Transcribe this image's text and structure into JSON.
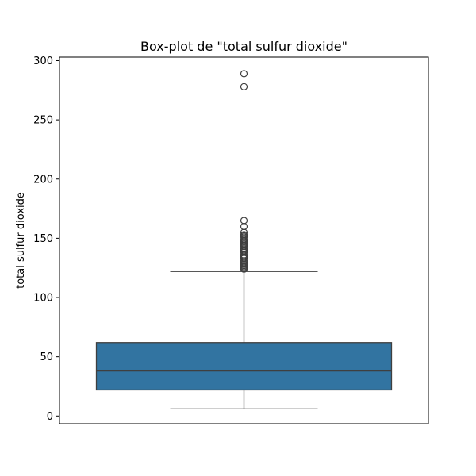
{
  "chart_data": {
    "type": "box",
    "title": "Box-plot de \"total sulfur dioxide\"",
    "xlabel": "",
    "ylabel": "total sulfur dioxide",
    "ylim": [
      -6.5,
      303
    ],
    "yticks": [
      0,
      50,
      100,
      150,
      200,
      250,
      300
    ],
    "ytick_labels": [
      "0",
      "50",
      "100",
      "150",
      "200",
      "250",
      "300"
    ],
    "grid": false,
    "series": [
      {
        "min": 6,
        "q1": 22,
        "median": 38,
        "q3": 62,
        "max": 122,
        "outliers": [
          124,
          125,
          126,
          127,
          128,
          129,
          130,
          131,
          133,
          134,
          135,
          136,
          138,
          139,
          140,
          141,
          143,
          144,
          145,
          146,
          147,
          148,
          149,
          151,
          152,
          153,
          155,
          160,
          165,
          278,
          289
        ]
      }
    ],
    "colors": {
      "box_fill": "#3274a1",
      "line": "#3f3f3f",
      "axes": "#000000"
    }
  }
}
